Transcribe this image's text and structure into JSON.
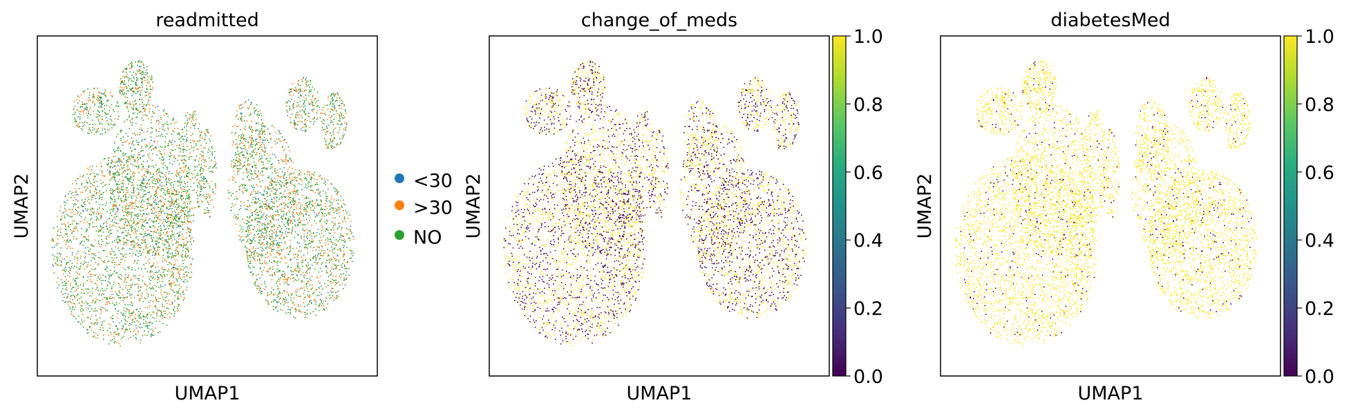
{
  "chart_data": [
    {
      "type": "scatter",
      "title": "readmitted",
      "xlabel": "UMAP1",
      "ylabel": "UMAP2",
      "color_mode": "categorical",
      "legend": {
        "placement": "right",
        "entries": [
          {
            "label": "<30",
            "color": "#1f77b4"
          },
          {
            "label": ">30",
            "color": "#ff7f0e"
          },
          {
            "label": "NO",
            "color": "#2ca02c"
          }
        ]
      },
      "category_fractions": {
        "<30": 0.1,
        ">30": 0.35,
        "NO": 0.55
      }
    },
    {
      "type": "scatter",
      "title": "change_of_meds",
      "xlabel": "UMAP1",
      "ylabel": "UMAP2",
      "color_mode": "continuous",
      "colormap": "viridis",
      "colorbar": {
        "range": [
          0.0,
          1.0
        ],
        "ticks": [
          "0.0",
          "0.2",
          "0.4",
          "0.6",
          "0.8",
          "1.0"
        ]
      },
      "value_fraction_high": 0.55
    },
    {
      "type": "scatter",
      "title": "diabetesMed",
      "xlabel": "UMAP1",
      "ylabel": "UMAP2",
      "color_mode": "continuous",
      "colormap": "viridis",
      "colorbar": {
        "range": [
          0.0,
          1.0
        ],
        "ticks": [
          "0.0",
          "0.2",
          "0.4",
          "0.6",
          "0.8",
          "1.0"
        ]
      },
      "value_fraction_high": 0.92
    }
  ],
  "colors": {
    "viridis_low": "#440154",
    "viridis_high": "#fde725"
  }
}
